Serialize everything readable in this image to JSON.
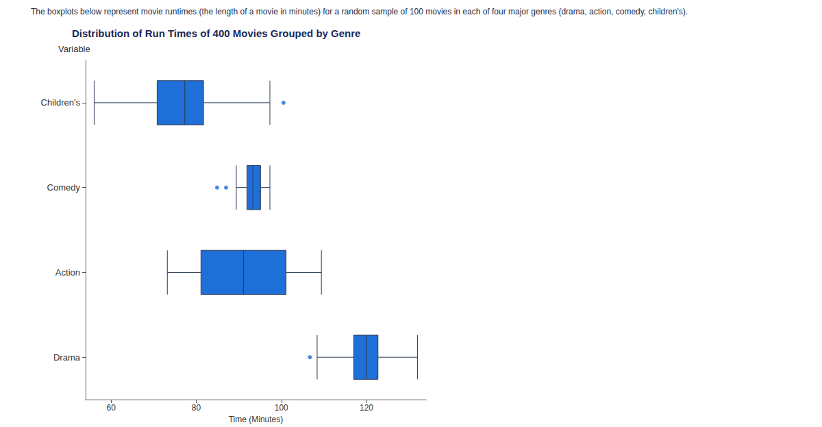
{
  "caption": "The boxplots below represent movie runtimes (the length of a movie in minutes) for a random sample of 100 movies in each of four major genres (drama, action, comedy, children's).",
  "chart_data": {
    "type": "boxplot",
    "title": "Distribution of Run Times of 400 Movies Grouped by Genre",
    "y_label": "Variable",
    "x_label": "Time (Minutes)",
    "orientation": "horizontal",
    "categories": [
      "Children's",
      "Comedy",
      "Action",
      "Drama"
    ],
    "values": [
      [
        56,
        70.8,
        77.3,
        81.7,
        97.3
      ],
      [
        89.4,
        91.9,
        93.3,
        95.1,
        97.3
      ],
      [
        73.2,
        81.1,
        91.1,
        101.1,
        109.4
      ],
      [
        108.4,
        117,
        120,
        122.7,
        132
      ]
    ],
    "outliers": [
      [
        100.5
      ],
      [
        84.9,
        87
      ],
      [],
      [
        106.7
      ]
    ],
    "color": "#1f6fd8",
    "xlim": [
      54,
      134
    ],
    "xticks": [
      60,
      80,
      100,
      120
    ],
    "grid": false
  }
}
